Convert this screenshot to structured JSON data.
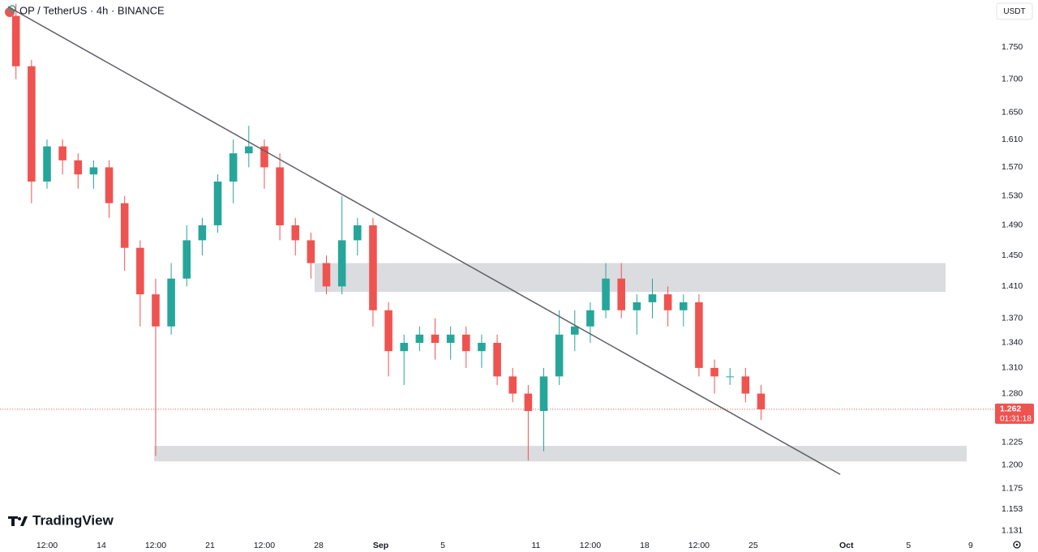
{
  "chart_data": {
    "type": "candlestick",
    "title": "OP / TetherUS · 4h · BINANCE",
    "currency_button": "USDT",
    "brand": "TradingView",
    "log_scale": true,
    "grid": false,
    "up_color": "#26a69a",
    "down_color": "#ef5350",
    "x": [
      8.5,
      9.5,
      10.5,
      11.5,
      12.5,
      13.5,
      14.5,
      15.5,
      16.5,
      17.5,
      18.5,
      19.5,
      20.5,
      21.5,
      22.5,
      23.5,
      24.5,
      25.5,
      26.5,
      27.5,
      28.5,
      29.5,
      30.5,
      31.5,
      32.5,
      33.5,
      34.5,
      35.5,
      36.5,
      37.5,
      38.5,
      39.5,
      40.5,
      41.5,
      42.5,
      43.5,
      44.5,
      45.5,
      46.5,
      47.5,
      48.5,
      49.5,
      50.5,
      51.5,
      52.5,
      53.5,
      54.5,
      55.5,
      56.5
    ],
    "open": [
      1.8,
      1.72,
      1.55,
      1.6,
      1.58,
      1.56,
      1.57,
      1.52,
      1.46,
      1.4,
      1.36,
      1.42,
      1.47,
      1.49,
      1.55,
      1.59,
      1.6,
      1.57,
      1.49,
      1.47,
      1.44,
      1.41,
      1.47,
      1.49,
      1.38,
      1.33,
      1.34,
      1.35,
      1.34,
      1.35,
      1.33,
      1.34,
      1.3,
      1.28,
      1.26,
      1.3,
      1.35,
      1.36,
      1.38,
      1.42,
      1.38,
      1.39,
      1.4,
      1.38,
      1.39,
      1.31,
      1.3,
      1.3,
      1.28
    ],
    "high": [
      1.82,
      1.73,
      1.61,
      1.61,
      1.59,
      1.58,
      1.58,
      1.53,
      1.47,
      1.42,
      1.44,
      1.49,
      1.5,
      1.56,
      1.61,
      1.63,
      1.61,
      1.59,
      1.5,
      1.48,
      1.45,
      1.53,
      1.5,
      1.5,
      1.39,
      1.35,
      1.36,
      1.37,
      1.36,
      1.36,
      1.35,
      1.35,
      1.31,
      1.29,
      1.31,
      1.38,
      1.38,
      1.39,
      1.44,
      1.44,
      1.4,
      1.42,
      1.41,
      1.4,
      1.4,
      1.32,
      1.31,
      1.31,
      1.29
    ],
    "low": [
      1.7,
      1.52,
      1.54,
      1.56,
      1.54,
      1.54,
      1.5,
      1.43,
      1.36,
      1.21,
      1.35,
      1.41,
      1.45,
      1.48,
      1.52,
      1.57,
      1.54,
      1.47,
      1.45,
      1.42,
      1.4,
      1.4,
      1.45,
      1.36,
      1.3,
      1.29,
      1.33,
      1.32,
      1.32,
      1.31,
      1.31,
      1.29,
      1.27,
      1.205,
      1.215,
      1.29,
      1.33,
      1.34,
      1.37,
      1.37,
      1.35,
      1.37,
      1.36,
      1.36,
      1.3,
      1.28,
      1.29,
      1.27,
      1.25
    ],
    "close": [
      1.72,
      1.55,
      1.6,
      1.58,
      1.56,
      1.57,
      1.52,
      1.46,
      1.4,
      1.36,
      1.42,
      1.47,
      1.49,
      1.55,
      1.59,
      1.6,
      1.57,
      1.49,
      1.47,
      1.44,
      1.41,
      1.47,
      1.49,
      1.38,
      1.33,
      1.34,
      1.35,
      1.34,
      1.35,
      1.33,
      1.34,
      1.3,
      1.28,
      1.26,
      1.3,
      1.35,
      1.36,
      1.38,
      1.42,
      1.38,
      1.39,
      1.4,
      1.38,
      1.39,
      1.31,
      1.3,
      1.3,
      1.28,
      1.262
    ],
    "xlim": [
      7.47,
      71.47
    ],
    "xticks": [
      {
        "value": 10.5,
        "label": "12:00"
      },
      14,
      {
        "value": 17.5,
        "label": "12:00"
      },
      21,
      {
        "value": 24.5,
        "label": "12:00"
      },
      28,
      {
        "value": 32,
        "label": "Sep"
      },
      {
        "value": 36,
        "label": "5"
      },
      {
        "value": 42,
        "label": "11"
      },
      {
        "value": 45.5,
        "label": "12:00"
      },
      {
        "value": 49,
        "label": "18"
      },
      {
        "value": 52.5,
        "label": "12:00"
      },
      {
        "value": 56,
        "label": "25"
      },
      {
        "value": 62,
        "label": "Oct"
      },
      {
        "value": 66,
        "label": "5"
      },
      {
        "value": 70,
        "label": "9"
      }
    ],
    "ylim": [
      1.125,
      1.826
    ],
    "yticks": [
      {
        "value": 1.75,
        "label": "1.750"
      },
      {
        "value": 1.7,
        "label": "1.700"
      },
      {
        "value": 1.65,
        "label": "1.650"
      },
      {
        "value": 1.61,
        "label": "1.610"
      },
      {
        "value": 1.57,
        "label": "1.570"
      },
      {
        "value": 1.53,
        "label": "1.530"
      },
      {
        "value": 1.49,
        "label": "1.490"
      },
      {
        "value": 1.45,
        "label": "1.450"
      },
      {
        "value": 1.41,
        "label": "1.410"
      },
      {
        "value": 1.37,
        "label": "1.370"
      },
      {
        "value": 1.34,
        "label": "1.340"
      },
      {
        "value": 1.31,
        "label": "1.310"
      },
      {
        "value": 1.28,
        "label": "1.280"
      },
      1.225,
      {
        "value": 1.2,
        "label": "1.200"
      },
      1.175,
      1.153,
      1.131
    ],
    "last_price": 1.262,
    "countdown": "01:31:18",
    "zones": [
      {
        "x": [
          27.74,
          68.39
        ],
        "y": [
          1.403,
          1.44
        ]
      },
      {
        "x": [
          17.4,
          69.75
        ],
        "y": [
          1.204,
          1.221
        ]
      }
    ],
    "trendline": {
      "x": [
        7.99,
        61.6
      ],
      "y": [
        1.815,
        1.19
      ]
    }
  }
}
